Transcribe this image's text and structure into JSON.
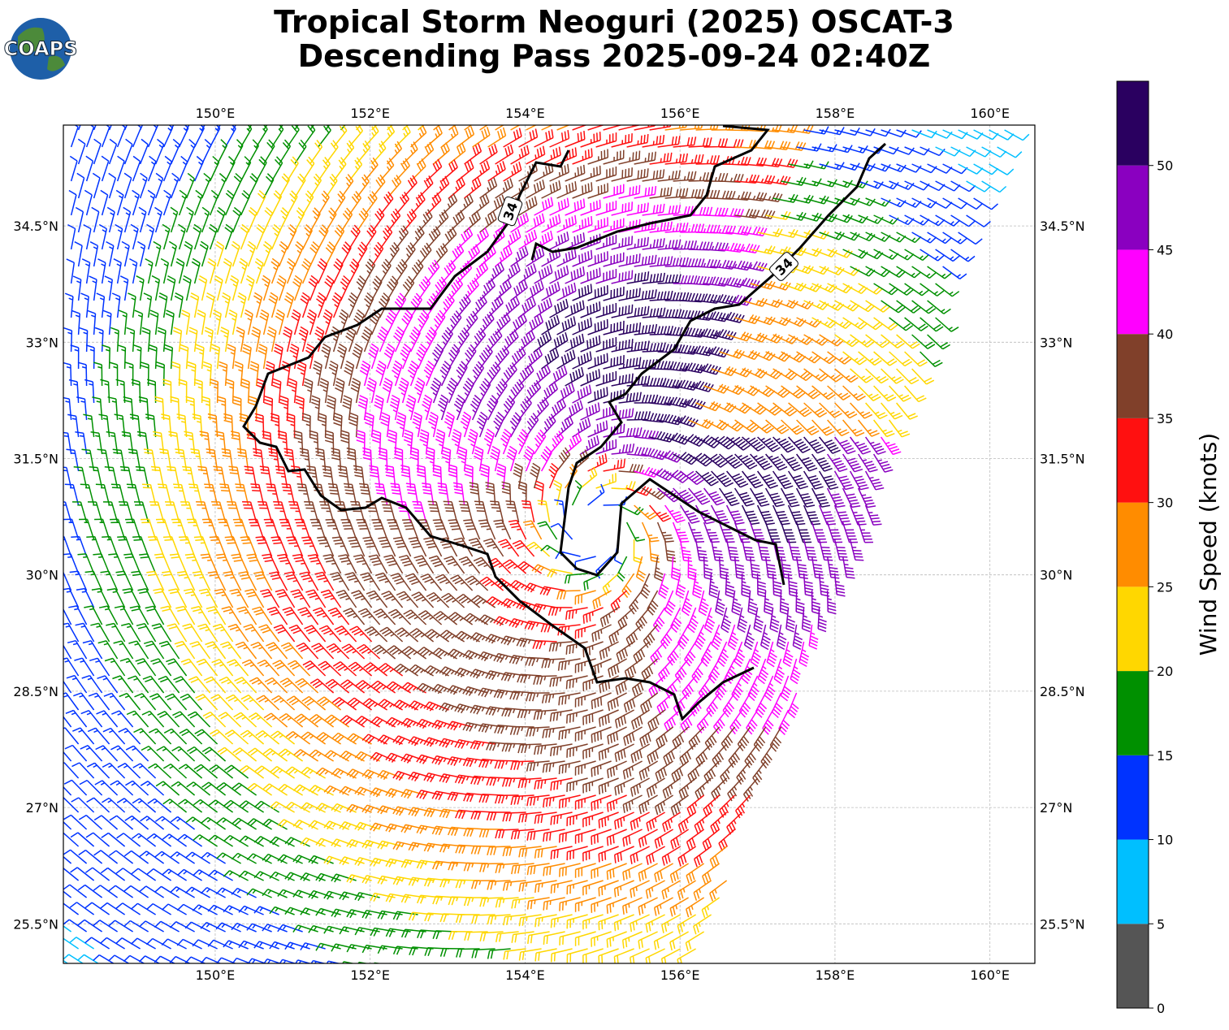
{
  "header": {
    "title": "Tropical Storm Neoguri (2025) OSCAT-3",
    "subtitle": "Descending Pass 2025-09-24 02:40Z",
    "logo": "COAPS"
  },
  "map": {
    "xlim": [
      148.04,
      160.58
    ],
    "ylim": [
      24.99,
      35.8
    ],
    "xticks": [
      {
        "value": 150,
        "label": "150°E"
      },
      {
        "value": 152,
        "label": "152°E"
      },
      {
        "value": 154,
        "label": "154°E"
      },
      {
        "value": 156,
        "label": "156°E"
      },
      {
        "value": 158,
        "label": "158°E"
      },
      {
        "value": 160,
        "label": "160°E"
      }
    ],
    "yticks": [
      {
        "value": 25.5,
        "label": "25.5°N"
      },
      {
        "value": 27,
        "label": "27°N"
      },
      {
        "value": 28.5,
        "label": "28.5°N"
      },
      {
        "value": 30,
        "label": "30°N"
      },
      {
        "value": 31.5,
        "label": "31.5°N"
      },
      {
        "value": 33,
        "label": "33°N"
      },
      {
        "value": 34.5,
        "label": "34.5°N"
      }
    ],
    "contour_label": "34",
    "grid": true
  },
  "colorbar": {
    "label": "Wind Speed (knots)",
    "lim": [
      0,
      55
    ],
    "ticks": [
      0,
      5,
      10,
      15,
      20,
      25,
      30,
      35,
      40,
      45,
      50
    ],
    "colors": [
      "#555555",
      "#00bfff",
      "#0033ff",
      "#009000",
      "#ffd700",
      "#ff8c00",
      "#ff1010",
      "#80402a",
      "#ff00ff",
      "#8a00c0",
      "#2a0060"
    ]
  }
}
